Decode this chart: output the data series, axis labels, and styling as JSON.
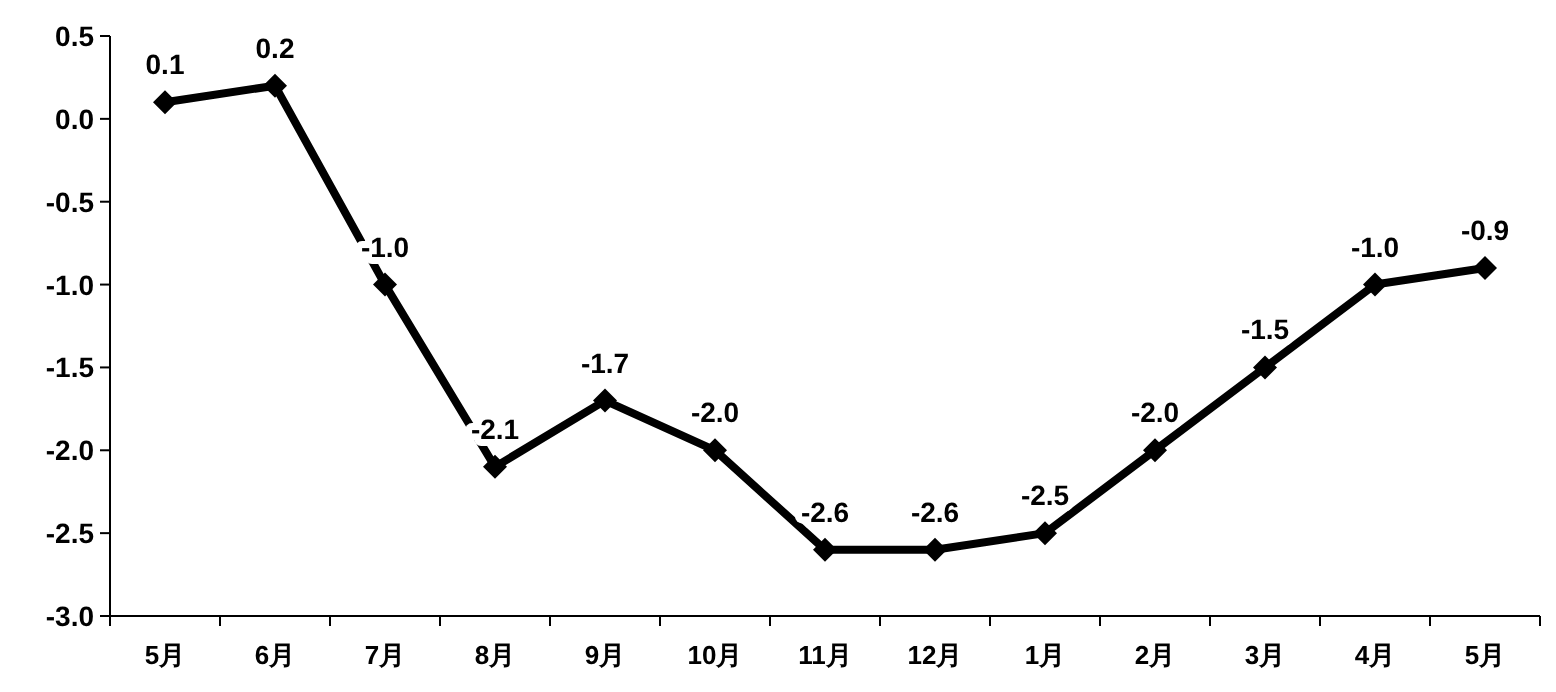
{
  "chart_data": {
    "type": "line",
    "categories": [
      "5月",
      "6月",
      "7月",
      "8月",
      "9月",
      "10月",
      "11月",
      "12月",
      "1月",
      "2月",
      "3月",
      "4月",
      "5月"
    ],
    "values": [
      0.1,
      0.2,
      -1.0,
      -2.1,
      -1.7,
      -2.0,
      -2.6,
      -2.6,
      -2.5,
      -2.0,
      -1.5,
      -1.0,
      -0.9
    ],
    "value_labels": [
      "0.1",
      "0.2",
      "-1.0",
      "-2.1",
      "-1.7",
      "-2.0",
      "-2.6",
      "-2.6",
      "-2.5",
      "-2.0",
      "-1.5",
      "-1.0",
      "-0.9"
    ],
    "color": "#000000",
    "marker": "diamond",
    "line_style": "solid",
    "ylim": [
      -3,
      0.5
    ],
    "yticks": [
      {
        "value": -3,
        "label": "-3.0"
      },
      {
        "value": -2.5,
        "label": "-2.5"
      },
      {
        "value": -2,
        "label": "-2.0"
      },
      {
        "value": -1.5,
        "label": "-1.5"
      },
      {
        "value": -1,
        "label": "-1.0"
      },
      {
        "value": -0.5,
        "label": "-0.5"
      },
      {
        "value": 0,
        "label": "0.0"
      },
      0.5
    ]
  }
}
